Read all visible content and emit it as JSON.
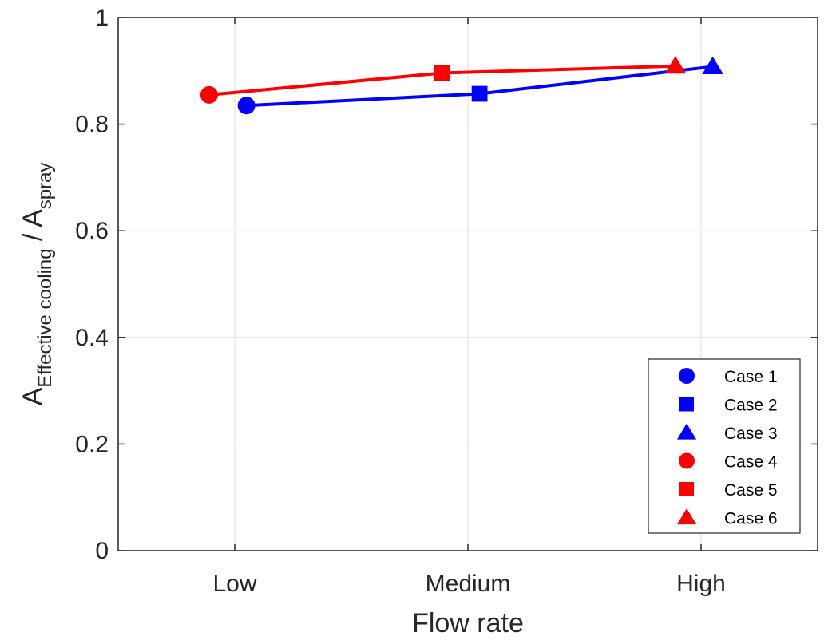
{
  "colors": {
    "blue": "#0000ff",
    "red": "#ff0000",
    "grid": "#dfdfdf",
    "axis": "#262626"
  },
  "chart_data": {
    "type": "line",
    "xlabel": "Flow rate",
    "ylabel": {
      "main1": "A",
      "sub1": "Effective cooling",
      "main2": " / A",
      "sub2": "spray"
    },
    "categories": [
      "Low",
      "Medium",
      "High"
    ],
    "ylim": [
      0,
      1
    ],
    "yticks": [
      "0",
      "0.2",
      "0.4",
      "0.6",
      "0.8",
      "1"
    ],
    "grid": true,
    "legend_position": "bottom-right",
    "series": [
      {
        "group": "blue",
        "color": "#0000ff",
        "points": [
          {
            "x": "Low",
            "y": 0.835,
            "label": "Case 1",
            "marker": "circle"
          },
          {
            "x": "Medium",
            "y": 0.857,
            "label": "Case 2",
            "marker": "square"
          },
          {
            "x": "High",
            "y": 0.908,
            "label": "Case 3",
            "marker": "triangle"
          }
        ]
      },
      {
        "group": "red",
        "color": "#ff0000",
        "points": [
          {
            "x": "Low",
            "y": 0.855,
            "label": "Case 4",
            "marker": "circle"
          },
          {
            "x": "Medium",
            "y": 0.896,
            "label": "Case 5",
            "marker": "square"
          },
          {
            "x": "High",
            "y": 0.909,
            "label": "Case 6",
            "marker": "triangle"
          }
        ]
      }
    ],
    "legend": [
      {
        "label": "Case 1",
        "color": "#0000ff",
        "marker": "circle"
      },
      {
        "label": "Case 2",
        "color": "#0000ff",
        "marker": "square"
      },
      {
        "label": "Case 3",
        "color": "#0000ff",
        "marker": "triangle"
      },
      {
        "label": "Case 4",
        "color": "#ff0000",
        "marker": "circle"
      },
      {
        "label": "Case 5",
        "color": "#ff0000",
        "marker": "square"
      },
      {
        "label": "Case 6",
        "color": "#ff0000",
        "marker": "triangle"
      }
    ]
  }
}
